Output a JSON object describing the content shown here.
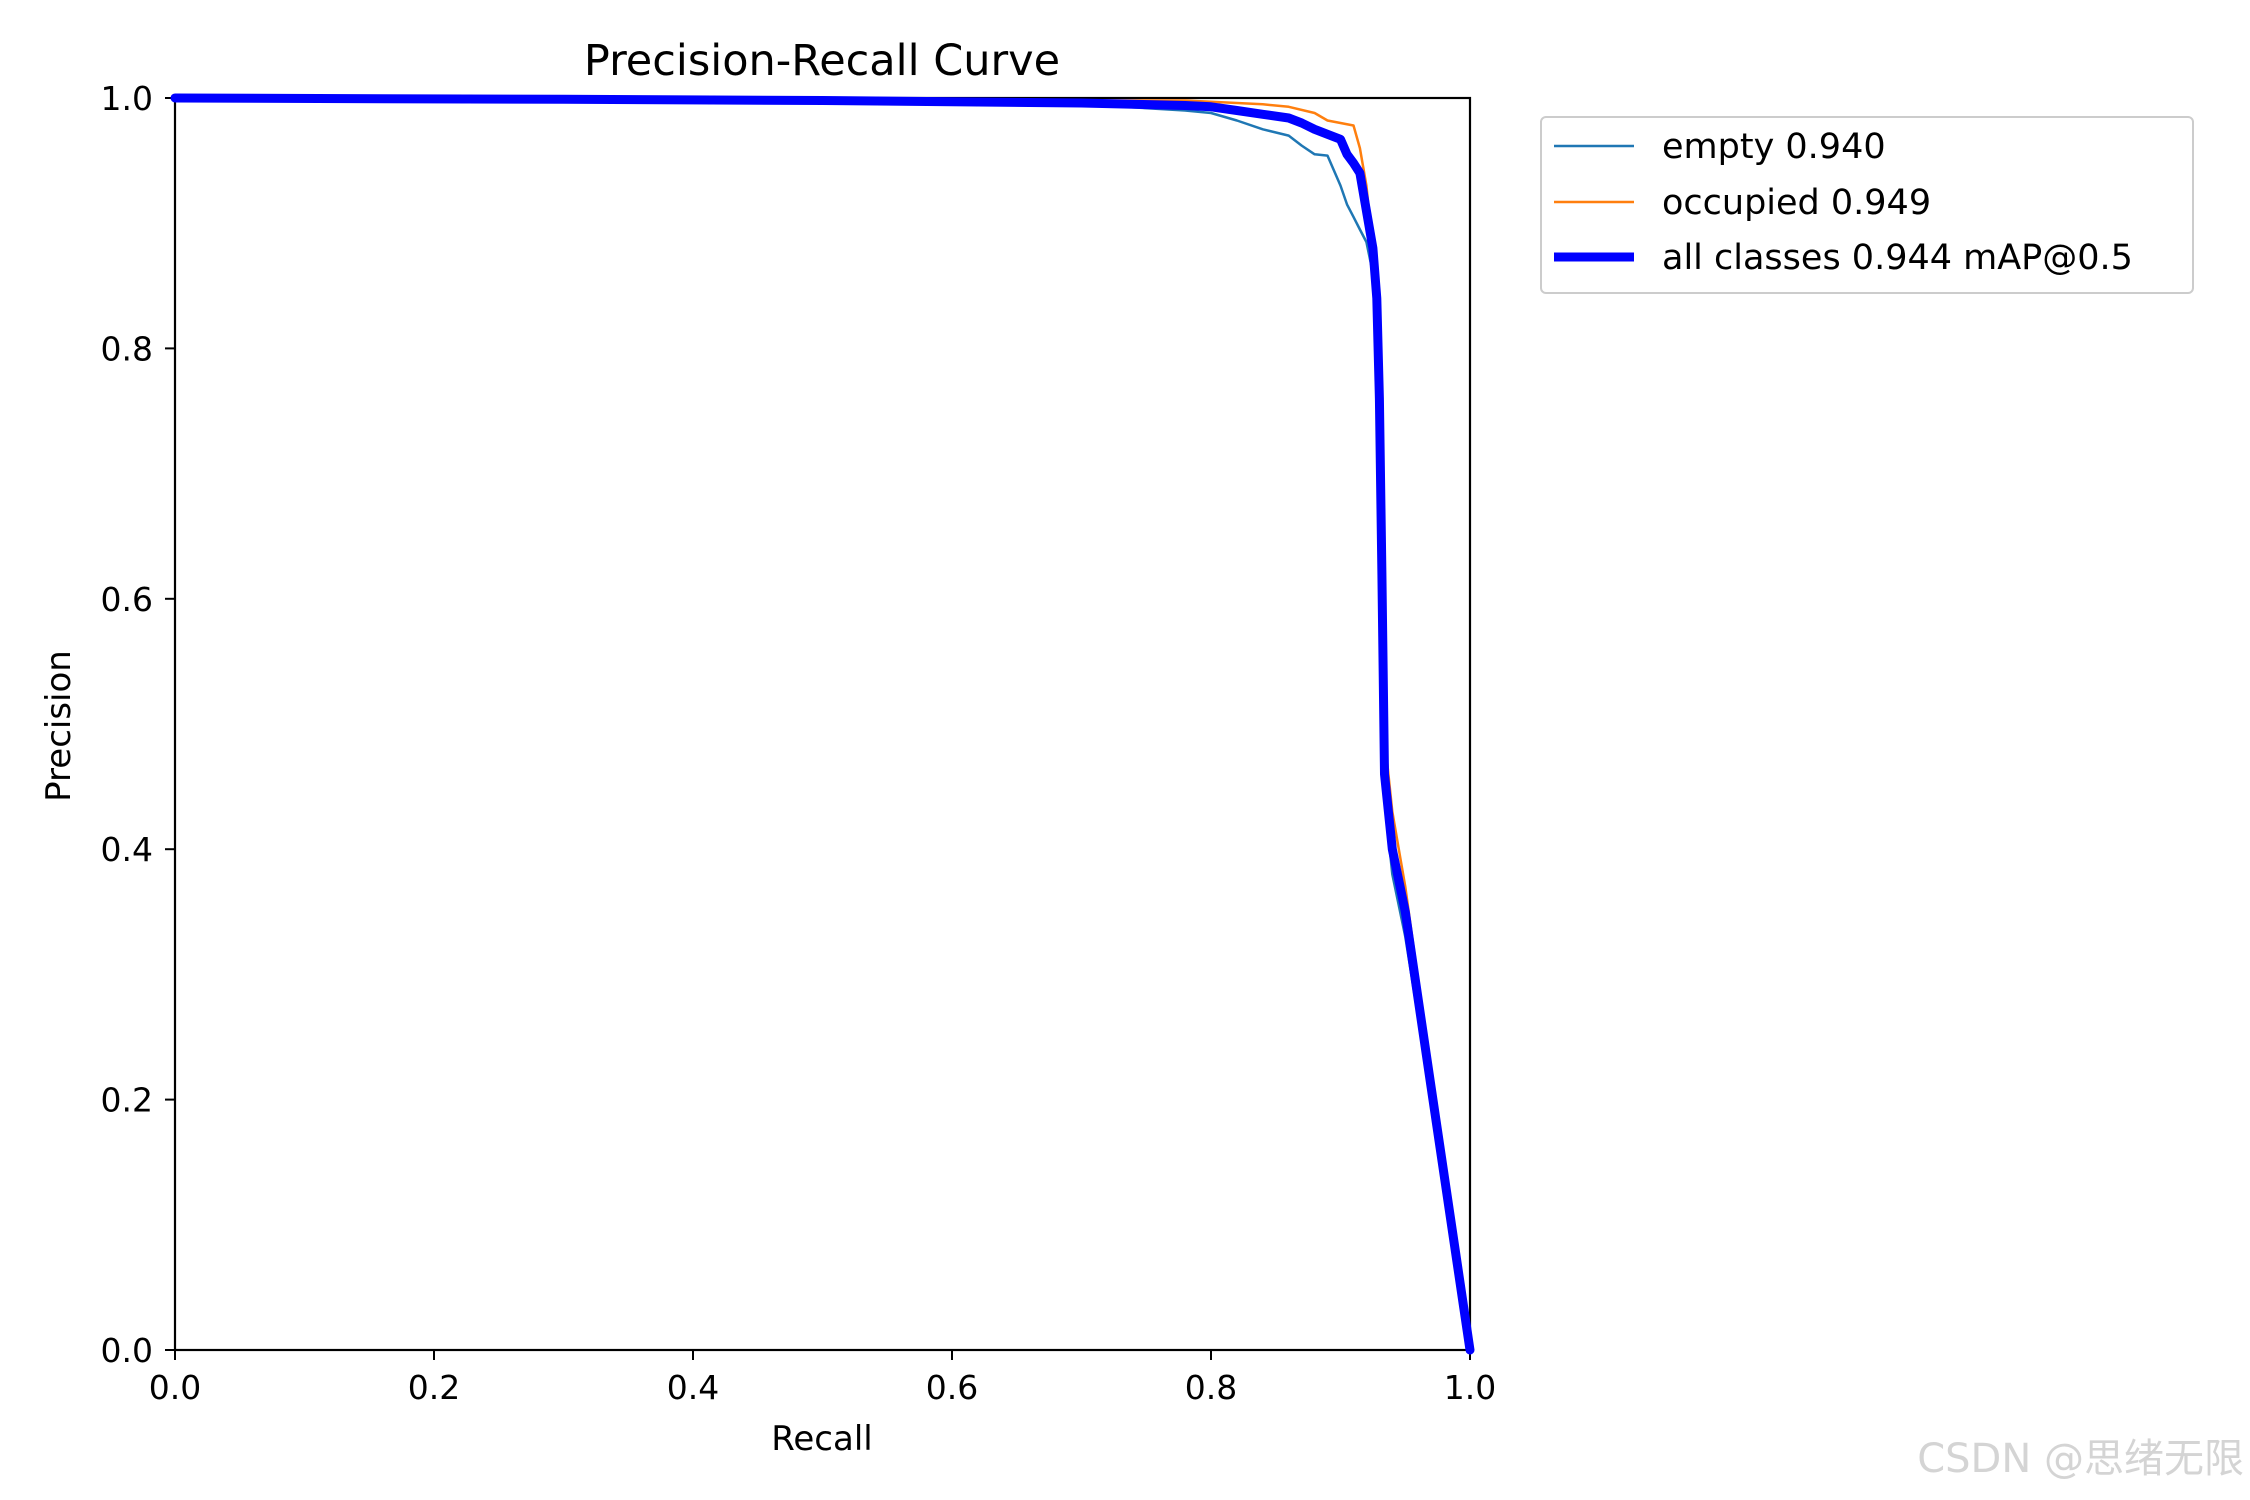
{
  "chart_data": {
    "type": "line",
    "title": "Precision-Recall Curve",
    "xlabel": "Recall",
    "ylabel": "Precision",
    "xlim": [
      0.0,
      1.0
    ],
    "ylim": [
      0.0,
      1.0
    ],
    "xticks": [
      "0.0",
      "0.2",
      "0.4",
      "0.6",
      "0.8",
      "1.0"
    ],
    "yticks": [
      "0.0",
      "0.2",
      "0.4",
      "0.6",
      "0.8",
      "1.0"
    ],
    "grid": false,
    "legend_position": "outside-top-right",
    "series": [
      {
        "name": "empty",
        "legend_label": "empty 0.940",
        "ap": 0.94,
        "color": "#1f77b4",
        "line_weight": "thin",
        "x": [
          0.0,
          0.3,
          0.5,
          0.6,
          0.7,
          0.78,
          0.8,
          0.82,
          0.84,
          0.86,
          0.87,
          0.88,
          0.89,
          0.9,
          0.905,
          0.91,
          0.915,
          0.92,
          0.925,
          0.928,
          0.93,
          0.932,
          0.934,
          0.936,
          0.938,
          0.94,
          0.95,
          0.97,
          1.0
        ],
        "y": [
          1.0,
          0.999,
          0.998,
          0.997,
          0.995,
          0.99,
          0.988,
          0.982,
          0.975,
          0.97,
          0.962,
          0.955,
          0.954,
          0.93,
          0.915,
          0.905,
          0.895,
          0.885,
          0.86,
          0.82,
          0.75,
          0.65,
          0.5,
          0.43,
          0.4,
          0.38,
          0.33,
          0.2,
          0.0
        ]
      },
      {
        "name": "occupied",
        "legend_label": "occupied 0.949",
        "ap": 0.949,
        "color": "#ff7f0e",
        "line_weight": "thin",
        "x": [
          0.0,
          0.3,
          0.5,
          0.6,
          0.7,
          0.78,
          0.8,
          0.82,
          0.84,
          0.86,
          0.88,
          0.89,
          0.9,
          0.91,
          0.915,
          0.92,
          0.925,
          0.928,
          0.93,
          0.932,
          0.934,
          0.936,
          0.938,
          0.94,
          0.95,
          0.97,
          1.0
        ],
        "y": [
          1.0,
          1.0,
          0.999,
          0.999,
          0.998,
          0.998,
          0.997,
          0.996,
          0.995,
          0.993,
          0.988,
          0.982,
          0.98,
          0.978,
          0.96,
          0.93,
          0.88,
          0.8,
          0.7,
          0.6,
          0.5,
          0.47,
          0.45,
          0.43,
          0.37,
          0.22,
          0.0
        ]
      },
      {
        "name": "all classes",
        "legend_label": "all classes 0.944 mAP@0.5",
        "ap": 0.944,
        "color": "#0000ff",
        "line_weight": "thick",
        "x": [
          0.0,
          0.3,
          0.5,
          0.6,
          0.7,
          0.78,
          0.8,
          0.82,
          0.84,
          0.86,
          0.87,
          0.88,
          0.89,
          0.9,
          0.905,
          0.91,
          0.915,
          0.92,
          0.925,
          0.928,
          0.93,
          0.932,
          0.934,
          0.936,
          0.938,
          0.94,
          0.95,
          0.97,
          1.0
        ],
        "y": [
          1.0,
          0.999,
          0.998,
          0.997,
          0.996,
          0.994,
          0.993,
          0.99,
          0.987,
          0.984,
          0.98,
          0.975,
          0.971,
          0.967,
          0.955,
          0.948,
          0.94,
          0.91,
          0.88,
          0.84,
          0.76,
          0.62,
          0.46,
          0.44,
          0.42,
          0.4,
          0.35,
          0.21,
          0.0
        ]
      }
    ]
  },
  "watermark": "CSDN @思绪无限"
}
